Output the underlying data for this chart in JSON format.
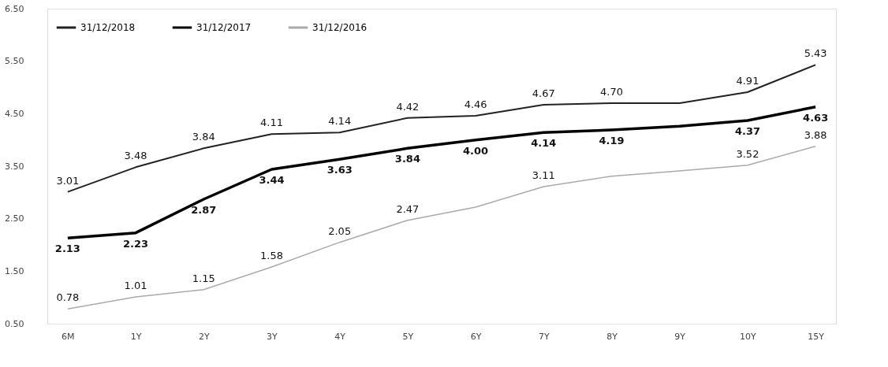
{
  "chart_data": {
    "type": "line",
    "categories": [
      "6M",
      "1Y",
      "2Y",
      "3Y",
      "4Y",
      "5Y",
      "6Y",
      "7Y",
      "8Y",
      "9Y",
      "10Y",
      "15Y"
    ],
    "series": [
      {
        "name": "31/12/2018",
        "color": "#222222",
        "values": [
          3.01,
          3.48,
          3.84,
          4.11,
          4.14,
          4.42,
          4.46,
          4.67,
          4.7,
          4.7,
          4.91,
          5.43
        ],
        "value_labels": [
          "3.01",
          "3.48",
          "3.84",
          "4.11",
          "4.14",
          "4.42",
          "4.46",
          "4.67",
          "4.70",
          null,
          "4.91",
          "5.43"
        ]
      },
      {
        "name": "31/12/2017",
        "color": "#000000",
        "values": [
          2.13,
          2.23,
          2.87,
          3.44,
          3.63,
          3.84,
          4.0,
          4.14,
          4.19,
          4.26,
          4.37,
          4.63
        ],
        "value_labels": [
          "2.13",
          "2.23",
          "2.87",
          "3.44",
          "3.63",
          "3.84",
          "4.00",
          "4.14",
          "4.19",
          null,
          "4.37",
          "4.63"
        ]
      },
      {
        "name": "31/12/2016",
        "color": "#aaaaaa",
        "values": [
          0.78,
          1.01,
          1.15,
          1.58,
          2.05,
          2.47,
          2.72,
          3.11,
          3.31,
          3.41,
          3.52,
          3.88
        ],
        "value_labels": [
          "0.78",
          "1.01",
          "1.15",
          "1.58",
          "2.05",
          "2.47",
          null,
          "3.11",
          null,
          null,
          "3.52",
          "3.88"
        ]
      }
    ],
    "ylim": [
      0.5,
      6.5
    ],
    "yticks": [
      {
        "value": 0.5,
        "label": "0.50"
      },
      {
        "value": 1.5,
        "label": "1.50"
      },
      {
        "value": 2.5,
        "label": "2.50"
      },
      {
        "value": 3.5,
        "label": "3.50"
      },
      {
        "value": 4.5,
        "label": "4.50"
      },
      {
        "value": 5.5,
        "label": "5.50"
      },
      {
        "value": 6.5,
        "label": "6.50"
      }
    ],
    "grid": false,
    "legend": "top left",
    "marker": "none",
    "line_style": "solid"
  }
}
